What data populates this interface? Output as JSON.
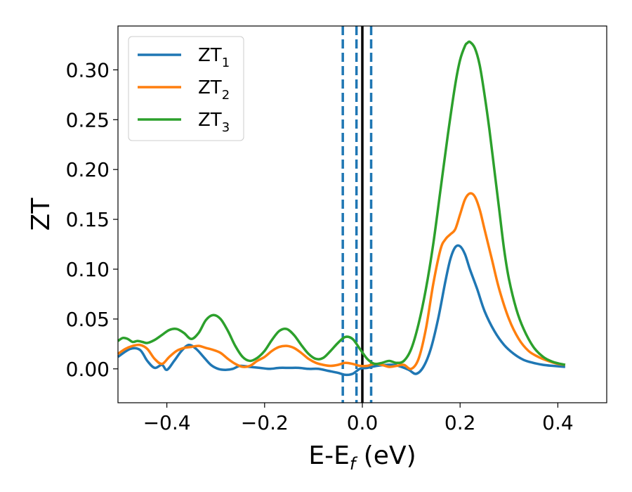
{
  "chart_data": {
    "type": "line",
    "title": "",
    "xlabel": {
      "main": "E-E",
      "sub": "f",
      "unit": " (eV)"
    },
    "ylabel": "ZT",
    "xlim": [
      -0.5,
      0.5
    ],
    "ylim": [
      -0.034,
      0.344
    ],
    "xticks": [
      -0.4,
      -0.2,
      0.0,
      0.2,
      0.4
    ],
    "xtick_labels": [
      "−0.4",
      "−0.2",
      "0.0",
      "0.2",
      "0.4"
    ],
    "yticks": [
      0.0,
      0.05,
      0.1,
      0.15,
      0.2,
      0.25,
      0.3
    ],
    "ytick_labels": [
      "0.00",
      "0.05",
      "0.10",
      "0.15",
      "0.20",
      "0.25",
      "0.30"
    ],
    "grid": false,
    "legend_position": "top-left",
    "vlines": [
      {
        "x": -0.04,
        "style": "dashed",
        "color": "#1f77b4"
      },
      {
        "x": -0.012,
        "style": "dashed",
        "color": "#1f77b4"
      },
      {
        "x": 0.018,
        "style": "dashed",
        "color": "#1f77b4"
      },
      {
        "x": 0.0,
        "style": "solid",
        "color": "#000000"
      }
    ],
    "series": [
      {
        "name": "ZT",
        "sub": "1",
        "color": "#1f77b4",
        "x": [
          -0.5,
          -0.475,
          -0.455,
          -0.44,
          -0.425,
          -0.41,
          -0.4,
          -0.385,
          -0.37,
          -0.355,
          -0.34,
          -0.325,
          -0.31,
          -0.295,
          -0.28,
          -0.265,
          -0.25,
          -0.23,
          -0.21,
          -0.19,
          -0.17,
          -0.15,
          -0.13,
          -0.11,
          -0.09,
          -0.07,
          -0.05,
          -0.035,
          -0.02,
          -0.005,
          0.01,
          0.03,
          0.05,
          0.065,
          0.08,
          0.095,
          0.11,
          0.125,
          0.14,
          0.155,
          0.17,
          0.18,
          0.19,
          0.2,
          0.21,
          0.22,
          0.235,
          0.25,
          0.27,
          0.29,
          0.31,
          0.33,
          0.35,
          0.37,
          0.39,
          0.415
        ],
        "y": [
          0.012,
          0.02,
          0.019,
          0.008,
          0.001,
          0.004,
          -0.001,
          0.008,
          0.018,
          0.024,
          0.02,
          0.012,
          0.004,
          0.0,
          -0.001,
          0.0,
          0.003,
          0.002,
          0.001,
          0.0,
          0.001,
          0.001,
          0.001,
          0.0,
          0.0,
          -0.002,
          -0.004,
          -0.006,
          -0.005,
          0.0,
          0.001,
          0.003,
          0.004,
          0.004,
          0.002,
          -0.001,
          -0.005,
          0.002,
          0.02,
          0.05,
          0.088,
          0.11,
          0.122,
          0.123,
          0.115,
          0.1,
          0.08,
          0.058,
          0.038,
          0.024,
          0.015,
          0.009,
          0.006,
          0.004,
          0.003,
          0.002
        ]
      },
      {
        "name": "ZT",
        "sub": "2",
        "color": "#ff7f0e",
        "x": [
          -0.5,
          -0.485,
          -0.47,
          -0.455,
          -0.44,
          -0.425,
          -0.41,
          -0.395,
          -0.38,
          -0.365,
          -0.35,
          -0.335,
          -0.32,
          -0.305,
          -0.29,
          -0.275,
          -0.26,
          -0.245,
          -0.23,
          -0.215,
          -0.2,
          -0.185,
          -0.17,
          -0.155,
          -0.14,
          -0.125,
          -0.11,
          -0.095,
          -0.08,
          -0.065,
          -0.05,
          -0.035,
          -0.02,
          -0.005,
          0.01,
          0.025,
          0.04,
          0.055,
          0.07,
          0.085,
          0.1,
          0.115,
          0.13,
          0.145,
          0.16,
          0.17,
          0.18,
          0.19,
          0.2,
          0.21,
          0.22,
          0.23,
          0.24,
          0.25,
          0.265,
          0.28,
          0.3,
          0.32,
          0.34,
          0.36,
          0.38,
          0.4,
          0.415
        ],
        "y": [
          0.015,
          0.02,
          0.023,
          0.024,
          0.02,
          0.01,
          0.005,
          0.012,
          0.018,
          0.021,
          0.022,
          0.023,
          0.021,
          0.019,
          0.016,
          0.01,
          0.005,
          0.002,
          0.003,
          0.008,
          0.012,
          0.018,
          0.022,
          0.023,
          0.021,
          0.016,
          0.01,
          0.006,
          0.004,
          0.003,
          0.004,
          0.006,
          0.005,
          0.003,
          0.003,
          0.005,
          0.004,
          0.002,
          0.003,
          0.004,
          0.0,
          0.01,
          0.04,
          0.085,
          0.12,
          0.13,
          0.135,
          0.14,
          0.155,
          0.17,
          0.176,
          0.173,
          0.16,
          0.14,
          0.11,
          0.08,
          0.05,
          0.03,
          0.018,
          0.012,
          0.008,
          0.005,
          0.004
        ]
      },
      {
        "name": "ZT",
        "sub": "3",
        "color": "#2ca02c",
        "x": [
          -0.5,
          -0.49,
          -0.48,
          -0.47,
          -0.46,
          -0.45,
          -0.44,
          -0.425,
          -0.41,
          -0.395,
          -0.38,
          -0.365,
          -0.35,
          -0.335,
          -0.32,
          -0.305,
          -0.29,
          -0.275,
          -0.26,
          -0.245,
          -0.23,
          -0.215,
          -0.2,
          -0.185,
          -0.17,
          -0.155,
          -0.14,
          -0.125,
          -0.11,
          -0.095,
          -0.08,
          -0.065,
          -0.05,
          -0.035,
          -0.02,
          -0.005,
          0.01,
          0.025,
          0.04,
          0.055,
          0.07,
          0.085,
          0.1,
          0.115,
          0.13,
          0.145,
          0.16,
          0.175,
          0.19,
          0.2,
          0.21,
          0.215,
          0.22,
          0.23,
          0.24,
          0.25,
          0.26,
          0.27,
          0.28,
          0.29,
          0.3,
          0.315,
          0.33,
          0.35,
          0.37,
          0.39,
          0.415
        ],
        "y": [
          0.028,
          0.031,
          0.03,
          0.027,
          0.028,
          0.027,
          0.026,
          0.029,
          0.034,
          0.039,
          0.04,
          0.036,
          0.03,
          0.036,
          0.049,
          0.054,
          0.05,
          0.038,
          0.023,
          0.012,
          0.008,
          0.011,
          0.018,
          0.029,
          0.038,
          0.04,
          0.034,
          0.024,
          0.015,
          0.01,
          0.011,
          0.018,
          0.026,
          0.032,
          0.03,
          0.02,
          0.01,
          0.005,
          0.006,
          0.008,
          0.006,
          0.008,
          0.02,
          0.045,
          0.08,
          0.125,
          0.18,
          0.235,
          0.285,
          0.31,
          0.324,
          0.327,
          0.328,
          0.322,
          0.305,
          0.275,
          0.24,
          0.2,
          0.16,
          0.12,
          0.09,
          0.06,
          0.04,
          0.022,
          0.012,
          0.007,
          0.004
        ]
      }
    ]
  }
}
